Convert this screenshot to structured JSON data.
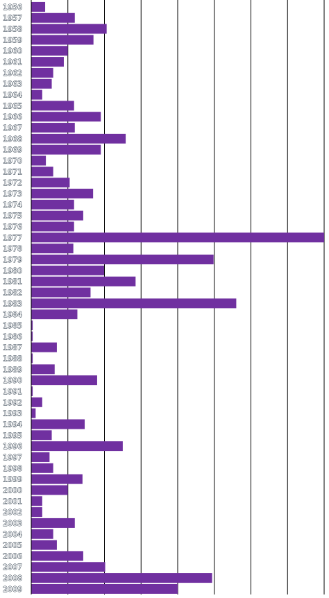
{
  "chart_data": {
    "type": "bar",
    "orientation": "horizontal",
    "title": "",
    "xlabel": "",
    "ylabel": "",
    "colors": {
      "bar": "#7030a0",
      "grid": "#000000",
      "background": "#ffffff",
      "label_fill": "#ffffff",
      "label_outline": "#1a2a3a"
    },
    "grid": {
      "vertical": true,
      "horizontal": false
    },
    "xlim": [
      0,
      80
    ],
    "categories": [
      "1956",
      "1957",
      "1958",
      "1959",
      "1960",
      "1961",
      "1962",
      "1963",
      "1964",
      "1965",
      "1966",
      "1967",
      "1968",
      "1969",
      "1970",
      "1971",
      "1972",
      "1973",
      "1974",
      "1975",
      "1976",
      "1977",
      "1978",
      "1979",
      "1980",
      "1981",
      "1982",
      "1983",
      "1984",
      "1985",
      "1986",
      "1987",
      "1988",
      "1989",
      "1990",
      "1991",
      "1992",
      "1993",
      "1994",
      "1995",
      "1996",
      "1997",
      "1998",
      "1999",
      "2000",
      "2001",
      "2002",
      "2003",
      "2004",
      "2005",
      "2006",
      "2007",
      "2008",
      "2009"
    ],
    "values": [
      3.8,
      11.9,
      20.6,
      17.0,
      10.0,
      8.9,
      6.0,
      5.6,
      3.0,
      11.7,
      19.0,
      11.9,
      25.8,
      19.0,
      4.0,
      6.0,
      10.5,
      16.9,
      11.7,
      14.2,
      11.7,
      81.0,
      11.5,
      49.8,
      19.9,
      28.5,
      16.2,
      56.0,
      12.6,
      0.4,
      0.4,
      7.0,
      0.4,
      6.4,
      18.0,
      0.4,
      3.0,
      1.2,
      14.6,
      5.6,
      25.0,
      5.0,
      6.0,
      14.0,
      10.0,
      3.0,
      3.0,
      11.9,
      6.0,
      7.0,
      14.2,
      20.2,
      49.4,
      40.0
    ]
  }
}
